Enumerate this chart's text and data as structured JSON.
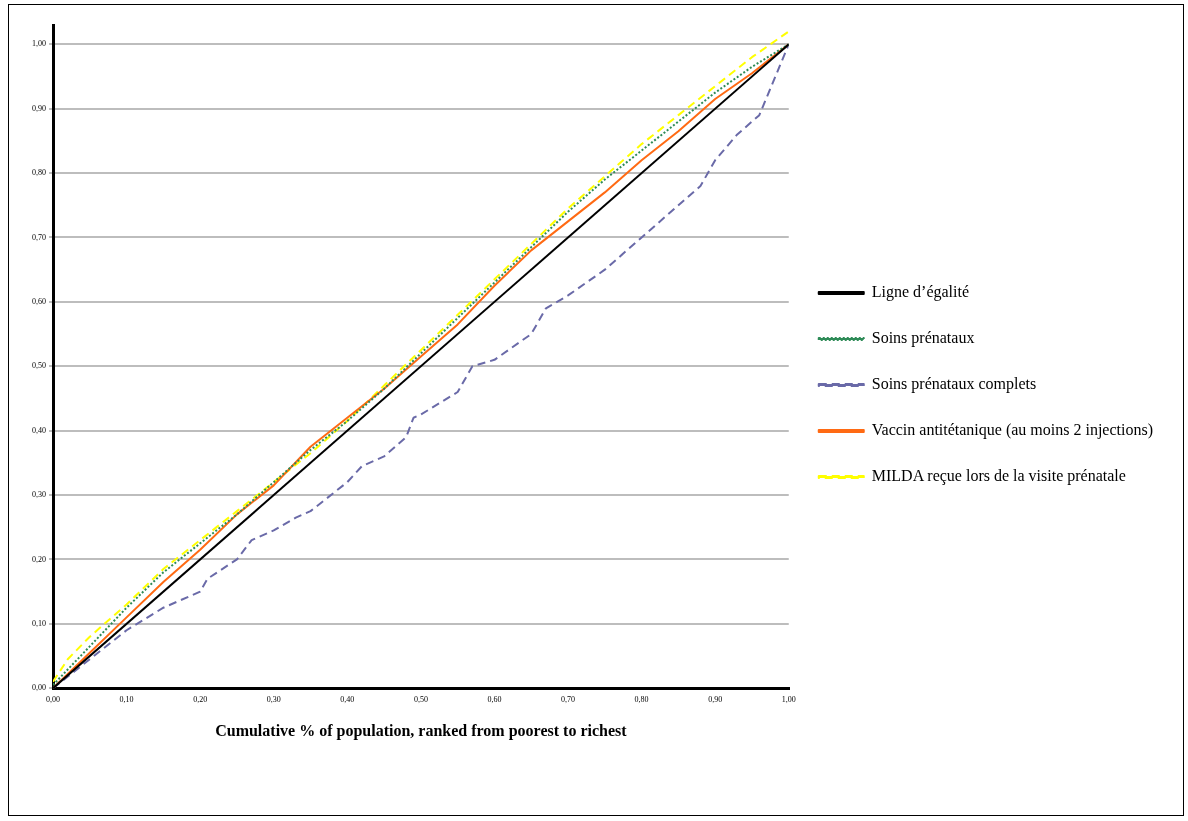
{
  "chart_data": {
    "type": "line",
    "xlabel": "Cumulative % of population, ranked from poorest to richest",
    "xlim": [
      0,
      1
    ],
    "ylim": [
      0,
      1.03
    ],
    "xticks": [
      {
        "value": 0,
        "label": "0,00"
      },
      {
        "value": 0.1,
        "label": "0,10"
      },
      {
        "value": 0.2,
        "label": "0,20"
      },
      {
        "value": 0.3,
        "label": "0,30"
      },
      {
        "value": 0.4,
        "label": "0,40"
      },
      {
        "value": 0.5,
        "label": "0,50"
      },
      {
        "value": 0.6,
        "label": "0,60"
      },
      {
        "value": 0.7,
        "label": "0,70"
      },
      {
        "value": 0.8,
        "label": "0,80"
      },
      {
        "value": 0.9,
        "label": "0,90"
      },
      {
        "value": 1,
        "label": "1,00"
      }
    ],
    "yticks": [
      {
        "value": 0,
        "label": "0,00"
      },
      {
        "value": 0.1,
        "label": "0,10"
      },
      {
        "value": 0.2,
        "label": "0,20"
      },
      {
        "value": 0.3,
        "label": "0,30"
      },
      {
        "value": 0.4,
        "label": "0,40"
      },
      {
        "value": 0.5,
        "label": "0,50"
      },
      {
        "value": 0.6,
        "label": "0,60"
      },
      {
        "value": 0.7,
        "label": "0,70"
      },
      {
        "value": 0.8,
        "label": "0,80"
      },
      {
        "value": 0.9,
        "label": "0,90"
      },
      {
        "value": 1,
        "label": "1,00"
      }
    ],
    "grid": "y",
    "legend": "right",
    "marker": "none",
    "series": [
      {
        "name": "Ligne d’égalité",
        "color": "#000000",
        "line_style": "solid",
        "x": [
          0,
          1
        ],
        "values": [
          0,
          1
        ]
      },
      {
        "name": "Soins prénataux",
        "color": "#2e8b57",
        "line_style": "dotted",
        "x": [
          0,
          0.05,
          0.1,
          0.15,
          0.2,
          0.25,
          0.3,
          0.35,
          0.4,
          0.45,
          0.5,
          0.55,
          0.6,
          0.65,
          0.7,
          0.75,
          0.8,
          0.85,
          0.9,
          0.95,
          1
        ],
        "values": [
          0.005,
          0.065,
          0.125,
          0.18,
          0.225,
          0.27,
          0.32,
          0.37,
          0.415,
          0.465,
          0.52,
          0.575,
          0.63,
          0.685,
          0.74,
          0.79,
          0.835,
          0.88,
          0.925,
          0.965,
          1
        ]
      },
      {
        "name": "Soins prénataux complets",
        "color": "#6a6aa8",
        "line_style": "dashed",
        "x": [
          0,
          0.05,
          0.1,
          0.15,
          0.2,
          0.21,
          0.25,
          0.27,
          0.3,
          0.33,
          0.35,
          0.4,
          0.42,
          0.45,
          0.48,
          0.49,
          0.5,
          0.55,
          0.57,
          0.6,
          0.65,
          0.67,
          0.7,
          0.75,
          0.78,
          0.8,
          0.85,
          0.88,
          0.9,
          0.93,
          0.96,
          1
        ],
        "values": [
          0,
          0.045,
          0.09,
          0.125,
          0.15,
          0.17,
          0.2,
          0.23,
          0.245,
          0.265,
          0.275,
          0.32,
          0.345,
          0.36,
          0.39,
          0.42,
          0.425,
          0.46,
          0.5,
          0.51,
          0.55,
          0.59,
          0.61,
          0.65,
          0.68,
          0.7,
          0.75,
          0.78,
          0.82,
          0.86,
          0.89,
          1
        ]
      },
      {
        "name": "Vaccin antitétanique (au moins 2 injections)",
        "color": "#ff6a13",
        "line_style": "solid",
        "x": [
          0,
          0.05,
          0.1,
          0.15,
          0.2,
          0.25,
          0.3,
          0.35,
          0.4,
          0.45,
          0.5,
          0.55,
          0.6,
          0.65,
          0.7,
          0.75,
          0.8,
          0.85,
          0.9,
          0.95,
          1
        ],
        "values": [
          0,
          0.055,
          0.11,
          0.165,
          0.215,
          0.27,
          0.315,
          0.375,
          0.42,
          0.465,
          0.515,
          0.565,
          0.625,
          0.68,
          0.725,
          0.77,
          0.82,
          0.865,
          0.915,
          0.955,
          1
        ]
      },
      {
        "name": "MILDA reçue lors de la visite prénatale",
        "color": "#ffff00",
        "line_style": "dashed",
        "x": [
          0,
          0.02,
          0.05,
          0.1,
          0.15,
          0.2,
          0.25,
          0.3,
          0.35,
          0.4,
          0.45,
          0.5,
          0.55,
          0.6,
          0.65,
          0.7,
          0.75,
          0.8,
          0.85,
          0.9,
          0.95,
          1
        ],
        "values": [
          0.01,
          0.045,
          0.08,
          0.13,
          0.185,
          0.23,
          0.275,
          0.32,
          0.365,
          0.415,
          0.47,
          0.525,
          0.58,
          0.635,
          0.69,
          0.745,
          0.795,
          0.845,
          0.89,
          0.935,
          0.98,
          1.02
        ]
      }
    ]
  }
}
